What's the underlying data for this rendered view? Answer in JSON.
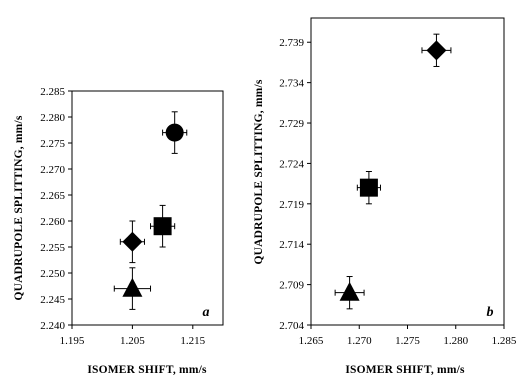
{
  "chart_data": [
    {
      "type": "scatter",
      "panel_label": "a",
      "xlabel": "ISOMER SHIFT, mm/s",
      "ylabel": "QUADRUPOLE SPLITTING, mm/s",
      "xlim": [
        1.195,
        1.22
      ],
      "ylim": [
        2.24,
        2.285
      ],
      "x_ticks": [
        "1.195",
        "1.205",
        "1.215"
      ],
      "y_ticks": [
        "2.240",
        "2.245",
        "2.250",
        "2.255",
        "2.260",
        "2.265",
        "2.270",
        "2.275",
        "2.280",
        "2.285"
      ],
      "grid": false,
      "points": [
        {
          "marker": "circle",
          "x": 1.212,
          "y": 2.277,
          "xerr": 0.002,
          "yerr": 0.004
        },
        {
          "marker": "square",
          "x": 1.21,
          "y": 2.259,
          "xerr": 0.002,
          "yerr": 0.004
        },
        {
          "marker": "diamond",
          "x": 1.205,
          "y": 2.256,
          "xerr": 0.002,
          "yerr": 0.004
        },
        {
          "marker": "triangle",
          "x": 1.205,
          "y": 2.247,
          "xerr": 0.003,
          "yerr": 0.004
        }
      ]
    },
    {
      "type": "scatter",
      "panel_label": "b",
      "xlabel": "ISOMER SHIFT, mm/s",
      "ylabel": "QUADRUPOLE SPLITTING, mm/s",
      "xlim": [
        1.265,
        1.285
      ],
      "ylim": [
        2.704,
        2.742
      ],
      "x_ticks": [
        "1.265",
        "1.270",
        "1.275",
        "1.280",
        "1.285"
      ],
      "y_ticks": [
        "2.704",
        "2.709",
        "2.714",
        "2.719",
        "2.724",
        "2.729",
        "2.734",
        "2.739"
      ],
      "grid": false,
      "points": [
        {
          "marker": "diamond",
          "x": 1.278,
          "y": 2.738,
          "xerr": 0.0015,
          "yerr": 0.002
        },
        {
          "marker": "square",
          "x": 1.271,
          "y": 2.721,
          "xerr": 0.0012,
          "yerr": 0.002
        },
        {
          "marker": "triangle",
          "x": 1.269,
          "y": 2.708,
          "xerr": 0.0015,
          "yerr": 0.002
        }
      ]
    }
  ]
}
